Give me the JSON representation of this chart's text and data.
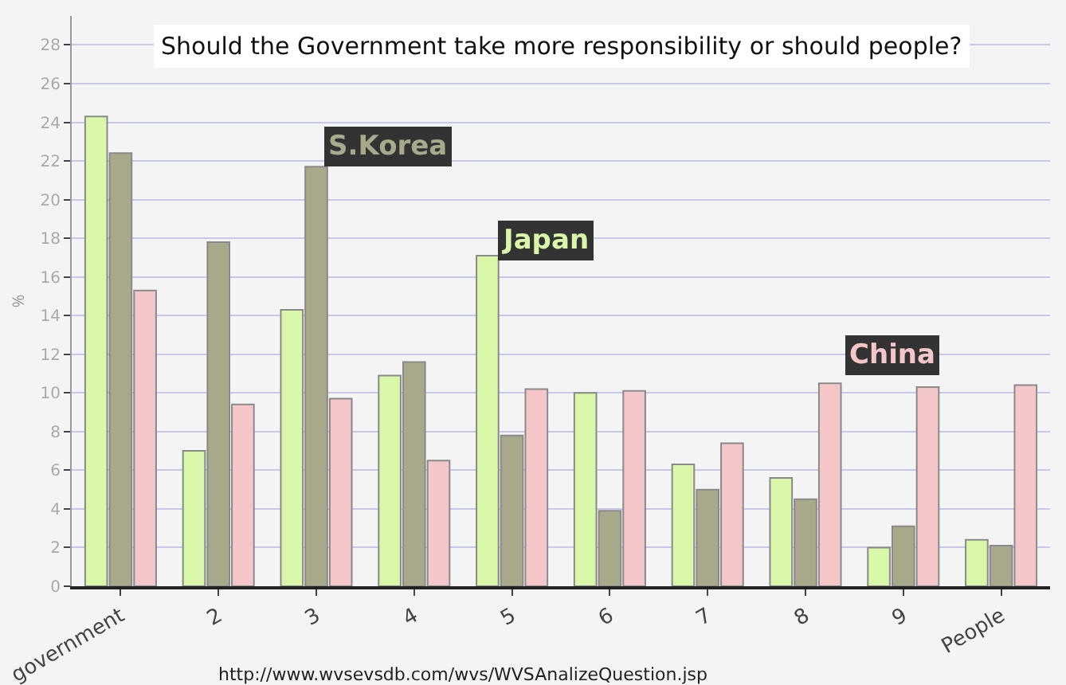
{
  "chart_data": {
    "type": "bar",
    "title": "Should the Government take more responsibility or should people?",
    "ylabel": "%",
    "categories": [
      "government",
      "2",
      "3",
      "4",
      "5",
      "6",
      "7",
      "8",
      "9",
      "People"
    ],
    "series": [
      {
        "name": "Japan",
        "color": "#d9f7a8",
        "values": [
          24.3,
          7.0,
          14.3,
          10.9,
          17.1,
          10.0,
          6.3,
          5.6,
          2.0,
          2.4
        ]
      },
      {
        "name": "S.Korea",
        "color": "#a8a88a",
        "values": [
          22.4,
          17.8,
          21.7,
          11.6,
          7.8,
          3.9,
          5.0,
          4.5,
          3.1,
          2.1
        ]
      },
      {
        "name": "China",
        "color": "#f5c6c8",
        "values": [
          15.3,
          9.4,
          9.7,
          6.5,
          10.2,
          10.1,
          7.4,
          10.5,
          10.3,
          10.4
        ]
      }
    ],
    "ylim": [
      0,
      29.5
    ],
    "yticks": [
      0,
      2,
      4,
      6,
      8,
      10,
      12,
      14,
      16,
      18,
      20,
      22,
      24,
      26,
      28
    ],
    "grid": "y",
    "legend": false,
    "annotations": [
      "http://www.wvsevsdb.com/wvs/WVSAnalizeQuestion.jsp"
    ]
  }
}
